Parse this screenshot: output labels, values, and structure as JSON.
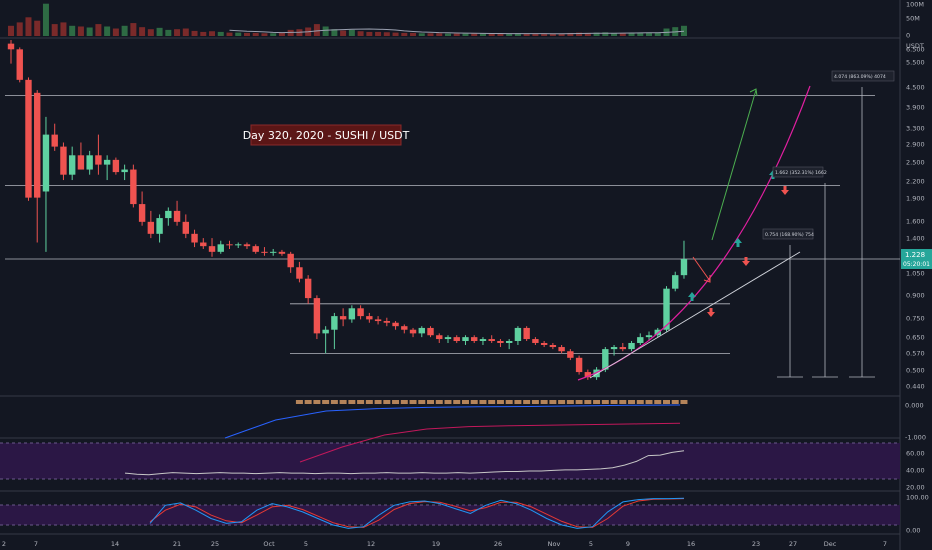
{
  "colors": {
    "bg": "#131722",
    "up": "#26a69a",
    "upFill": "#5fd1a0",
    "down": "#ef5350",
    "grid": "#2a2e39",
    "text": "#b2b5be",
    "hline": "#d1d4dc",
    "pink": "#e01fa0",
    "arrowGreen": "#26a69a",
    "arrowRed": "#ef5350",
    "rsi": "#c7c7c7",
    "macdBlue": "#2962ff",
    "macdRed": "#c2185b",
    "stochBlue": "#2196f3",
    "stochRed": "#e53935",
    "band": "#3a1b5c",
    "titleBg": "#5b1616",
    "titleText": "#ffffff"
  },
  "title": "Day 320, 2020 - SUSHI / USDT",
  "price_axis": {
    "ticks": [
      "6.500",
      "5.500",
      "4.500",
      "3.900",
      "3.300",
      "2.900",
      "2.500",
      "2.200",
      "1.900",
      "1.600",
      "1.400",
      "1.228",
      "1.050",
      "0.900",
      "0.750",
      "0.650",
      "0.570",
      "0.500",
      "0.440"
    ],
    "unit": "USDT",
    "last_price": "1.228",
    "countdown": "05:20:01"
  },
  "volume_axis": {
    "ticks": [
      "100M",
      "50M",
      "0"
    ]
  },
  "macd_axis": {
    "ticks": [
      "0.000",
      "-1.000"
    ]
  },
  "rsi_axis": {
    "ticks": [
      "60.00",
      "40.00",
      "20.00"
    ]
  },
  "stoch_axis": {
    "ticks": [
      "100.00",
      "0.00"
    ]
  },
  "time_axis": {
    "ticks": [
      "2",
      "7",
      "14",
      "21",
      "25",
      "Oct",
      "5",
      "12",
      "19",
      "26",
      "Nov",
      "5",
      "9",
      "16",
      "23",
      "27",
      "Dec",
      "7"
    ]
  },
  "measure_labels": [
    "4.074 (863.09%) 4074",
    "1.662 (352.31%) 1662",
    "0.754 (168.90%) 754"
  ],
  "chart_data": {
    "type": "candlestick",
    "title": "Day 320, 2020 - SUSHI / USDT",
    "interval": "1D",
    "x_range": [
      "2020-09-01",
      "2020-12-09"
    ],
    "y_scale": "log",
    "ylim": [
      0.42,
      7.0
    ],
    "candles": [
      {
        "o": 6.8,
        "h": 7.0,
        "l": 5.8,
        "c": 6.5
      },
      {
        "o": 6.5,
        "h": 6.6,
        "l": 5.0,
        "c": 5.1
      },
      {
        "o": 5.1,
        "h": 5.2,
        "l": 1.95,
        "c": 2.0
      },
      {
        "o": 4.6,
        "h": 4.7,
        "l": 1.4,
        "c": 2.0
      },
      {
        "o": 2.1,
        "h": 3.8,
        "l": 1.3,
        "c": 3.3
      },
      {
        "o": 3.3,
        "h": 3.6,
        "l": 2.9,
        "c": 3.0
      },
      {
        "o": 3.0,
        "h": 3.1,
        "l": 2.3,
        "c": 2.4
      },
      {
        "o": 2.4,
        "h": 3.0,
        "l": 2.3,
        "c": 2.8
      },
      {
        "o": 2.8,
        "h": 3.1,
        "l": 2.5,
        "c": 2.5
      },
      {
        "o": 2.5,
        "h": 2.9,
        "l": 2.4,
        "c": 2.8
      },
      {
        "o": 2.8,
        "h": 3.3,
        "l": 2.4,
        "c": 2.6
      },
      {
        "o": 2.6,
        "h": 2.8,
        "l": 2.3,
        "c": 2.7
      },
      {
        "o": 2.7,
        "h": 2.75,
        "l": 2.4,
        "c": 2.45
      },
      {
        "o": 2.45,
        "h": 2.6,
        "l": 2.3,
        "c": 2.5
      },
      {
        "o": 2.5,
        "h": 2.6,
        "l": 1.85,
        "c": 1.9
      },
      {
        "o": 1.9,
        "h": 2.1,
        "l": 1.6,
        "c": 1.65
      },
      {
        "o": 1.65,
        "h": 1.8,
        "l": 1.45,
        "c": 1.5
      },
      {
        "o": 1.5,
        "h": 1.75,
        "l": 1.4,
        "c": 1.7
      },
      {
        "o": 1.7,
        "h": 1.85,
        "l": 1.6,
        "c": 1.8
      },
      {
        "o": 1.8,
        "h": 1.95,
        "l": 1.6,
        "c": 1.65
      },
      {
        "o": 1.65,
        "h": 1.75,
        "l": 1.45,
        "c": 1.5
      },
      {
        "o": 1.5,
        "h": 1.55,
        "l": 1.35,
        "c": 1.4
      },
      {
        "o": 1.4,
        "h": 1.45,
        "l": 1.33,
        "c": 1.36
      },
      {
        "o": 1.36,
        "h": 1.45,
        "l": 1.25,
        "c": 1.3
      },
      {
        "o": 1.3,
        "h": 1.42,
        "l": 1.28,
        "c": 1.38
      },
      {
        "o": 1.38,
        "h": 1.42,
        "l": 1.33,
        "c": 1.37
      },
      {
        "o": 1.37,
        "h": 1.4,
        "l": 1.34,
        "c": 1.38
      },
      {
        "o": 1.38,
        "h": 1.4,
        "l": 1.33,
        "c": 1.36
      },
      {
        "o": 1.36,
        "h": 1.38,
        "l": 1.28,
        "c": 1.3
      },
      {
        "o": 1.3,
        "h": 1.35,
        "l": 1.26,
        "c": 1.29
      },
      {
        "o": 1.29,
        "h": 1.33,
        "l": 1.26,
        "c": 1.3
      },
      {
        "o": 1.3,
        "h": 1.32,
        "l": 1.26,
        "c": 1.28
      },
      {
        "o": 1.28,
        "h": 1.3,
        "l": 1.1,
        "c": 1.15
      },
      {
        "o": 1.15,
        "h": 1.2,
        "l": 1.02,
        "c": 1.05
      },
      {
        "o": 1.05,
        "h": 1.08,
        "l": 0.86,
        "c": 0.9
      },
      {
        "o": 0.9,
        "h": 0.92,
        "l": 0.65,
        "c": 0.68
      },
      {
        "o": 0.68,
        "h": 0.72,
        "l": 0.58,
        "c": 0.7
      },
      {
        "o": 0.7,
        "h": 0.8,
        "l": 0.6,
        "c": 0.78
      },
      {
        "o": 0.78,
        "h": 0.83,
        "l": 0.72,
        "c": 0.76
      },
      {
        "o": 0.76,
        "h": 0.85,
        "l": 0.74,
        "c": 0.83
      },
      {
        "o": 0.83,
        "h": 0.85,
        "l": 0.76,
        "c": 0.78
      },
      {
        "o": 0.78,
        "h": 0.8,
        "l": 0.74,
        "c": 0.76
      },
      {
        "o": 0.76,
        "h": 0.78,
        "l": 0.73,
        "c": 0.75
      },
      {
        "o": 0.75,
        "h": 0.77,
        "l": 0.72,
        "c": 0.74
      },
      {
        "o": 0.74,
        "h": 0.75,
        "l": 0.7,
        "c": 0.72
      },
      {
        "o": 0.72,
        "h": 0.73,
        "l": 0.68,
        "c": 0.7
      },
      {
        "o": 0.7,
        "h": 0.71,
        "l": 0.66,
        "c": 0.68
      },
      {
        "o": 0.68,
        "h": 0.72,
        "l": 0.66,
        "c": 0.71
      },
      {
        "o": 0.71,
        "h": 0.72,
        "l": 0.66,
        "c": 0.67
      },
      {
        "o": 0.67,
        "h": 0.68,
        "l": 0.63,
        "c": 0.65
      },
      {
        "o": 0.65,
        "h": 0.67,
        "l": 0.63,
        "c": 0.66
      },
      {
        "o": 0.66,
        "h": 0.67,
        "l": 0.63,
        "c": 0.64
      },
      {
        "o": 0.64,
        "h": 0.67,
        "l": 0.62,
        "c": 0.66
      },
      {
        "o": 0.66,
        "h": 0.67,
        "l": 0.63,
        "c": 0.64
      },
      {
        "o": 0.64,
        "h": 0.66,
        "l": 0.62,
        "c": 0.65
      },
      {
        "o": 0.65,
        "h": 0.67,
        "l": 0.63,
        "c": 0.64
      },
      {
        "o": 0.64,
        "h": 0.65,
        "l": 0.61,
        "c": 0.63
      },
      {
        "o": 0.63,
        "h": 0.65,
        "l": 0.6,
        "c": 0.64
      },
      {
        "o": 0.64,
        "h": 0.72,
        "l": 0.62,
        "c": 0.71
      },
      {
        "o": 0.71,
        "h": 0.72,
        "l": 0.64,
        "c": 0.65
      },
      {
        "o": 0.65,
        "h": 0.66,
        "l": 0.62,
        "c": 0.63
      },
      {
        "o": 0.63,
        "h": 0.64,
        "l": 0.61,
        "c": 0.62
      },
      {
        "o": 0.62,
        "h": 0.63,
        "l": 0.6,
        "c": 0.61
      },
      {
        "o": 0.61,
        "h": 0.62,
        "l": 0.58,
        "c": 0.59
      },
      {
        "o": 0.59,
        "h": 0.6,
        "l": 0.55,
        "c": 0.56
      },
      {
        "o": 0.56,
        "h": 0.57,
        "l": 0.49,
        "c": 0.5
      },
      {
        "o": 0.5,
        "h": 0.51,
        "l": 0.47,
        "c": 0.48
      },
      {
        "o": 0.48,
        "h": 0.52,
        "l": 0.47,
        "c": 0.51
      },
      {
        "o": 0.51,
        "h": 0.61,
        "l": 0.5,
        "c": 0.6
      },
      {
        "o": 0.6,
        "h": 0.62,
        "l": 0.57,
        "c": 0.61
      },
      {
        "o": 0.61,
        "h": 0.63,
        "l": 0.59,
        "c": 0.6
      },
      {
        "o": 0.6,
        "h": 0.64,
        "l": 0.59,
        "c": 0.63
      },
      {
        "o": 0.63,
        "h": 0.68,
        "l": 0.62,
        "c": 0.66
      },
      {
        "o": 0.66,
        "h": 0.69,
        "l": 0.64,
        "c": 0.67
      },
      {
        "o": 0.67,
        "h": 0.71,
        "l": 0.66,
        "c": 0.7
      },
      {
        "o": 0.7,
        "h": 0.99,
        "l": 0.69,
        "c": 0.97
      },
      {
        "o": 0.97,
        "h": 1.11,
        "l": 0.95,
        "c": 1.08
      },
      {
        "o": 1.08,
        "h": 1.42,
        "l": 1.05,
        "c": 1.228
      }
    ],
    "volume": [
      30,
      40,
      55,
      45,
      95,
      35,
      40,
      30,
      28,
      25,
      35,
      28,
      22,
      30,
      38,
      26,
      20,
      24,
      18,
      20,
      22,
      15,
      12,
      14,
      12,
      10,
      10,
      9,
      9,
      8,
      8,
      9,
      18,
      20,
      25,
      35,
      28,
      20,
      16,
      18,
      14,
      12,
      12,
      11,
      10,
      9,
      9,
      8,
      8,
      8,
      7,
      7,
      7,
      7,
      7,
      7,
      7,
      7,
      8,
      7,
      7,
      6,
      6,
      7,
      9,
      10,
      9,
      10,
      11,
      8,
      8,
      9,
      10,
      9,
      9,
      22,
      26,
      30
    ],
    "horizontal_levels": [
      4.5,
      2.2,
      1.228,
      0.86,
      0.58
    ],
    "rsi": [
      30,
      28,
      27,
      29,
      31,
      30,
      29,
      30,
      31,
      30,
      30,
      29,
      30,
      31,
      30,
      30,
      29,
      30,
      30,
      29,
      30,
      30,
      31,
      30,
      30,
      31,
      30,
      30,
      31,
      30,
      31,
      32,
      33,
      33,
      34,
      34,
      35,
      36,
      36,
      37,
      38,
      40,
      45,
      52,
      63,
      64,
      69,
      72
    ],
    "macd": [
      -1.1,
      -0.5,
      -0.2,
      -0.12,
      -0.08,
      -0.06,
      -0.05,
      -0.03,
      -0.01,
      0.0
    ],
    "macd_signal": [
      -1.3,
      -0.8,
      -0.4,
      -0.2,
      -0.12,
      -0.09,
      -0.07,
      -0.05,
      -0.03,
      -0.01
    ],
    "stoch_k": [
      20,
      75,
      82,
      60,
      35,
      20,
      25,
      60,
      80,
      70,
      55,
      35,
      15,
      5,
      10,
      45,
      75,
      85,
      88,
      80,
      65,
      50,
      75,
      90,
      80,
      60,
      35,
      15,
      5,
      10,
      55,
      85,
      92,
      95,
      95,
      96
    ],
    "stoch_d": [
      25,
      60,
      78,
      70,
      45,
      28,
      22,
      45,
      70,
      75,
      62,
      42,
      22,
      10,
      8,
      30,
      62,
      80,
      86,
      84,
      72,
      58,
      68,
      84,
      84,
      70,
      48,
      26,
      10,
      8,
      35,
      72,
      88,
      93,
      94,
      95
    ]
  }
}
